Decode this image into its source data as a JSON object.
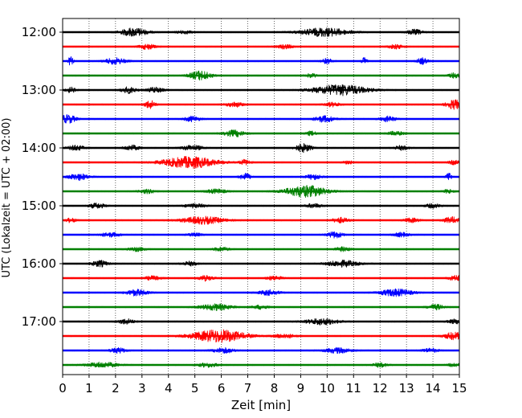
{
  "chart_data": {
    "type": "line",
    "title": "",
    "xlabel": "Zeit  [min]",
    "ylabel": "UTC (Lokalzeit = UTC + 02:00)",
    "xlim": [
      0,
      15
    ],
    "x_ticks": [
      "0",
      "1",
      "2",
      "3",
      "4",
      "5",
      "6",
      "7",
      "8",
      "9",
      "10",
      "11",
      "12",
      "13",
      "14",
      "15"
    ],
    "y_ticks": [
      "12:00",
      "13:00",
      "14:00",
      "15:00",
      "16:00",
      "17:00"
    ],
    "grid": "vertical dotted at each minute",
    "trace_interval_min": 15,
    "colors_cycle": [
      "#000000",
      "#ff0000",
      "#0000ff",
      "#008000"
    ],
    "traces": [
      {
        "start": "12:00",
        "color": "#000000",
        "events": [
          [
            2.7,
            0.5,
            0.8
          ],
          [
            9.9,
            0.9,
            0.8
          ],
          [
            13.3,
            0.3,
            0.5
          ],
          [
            4.6,
            0.3,
            0.3
          ]
        ]
      },
      {
        "start": "12:15",
        "color": "#ff0000",
        "events": [
          [
            3.2,
            0.3,
            0.5
          ],
          [
            8.4,
            0.3,
            0.4
          ],
          [
            12.6,
            0.3,
            0.4
          ]
        ]
      },
      {
        "start": "12:30",
        "color": "#0000ff",
        "events": [
          [
            0.3,
            0.1,
            0.8
          ],
          [
            2.0,
            0.4,
            0.6
          ],
          [
            10.0,
            0.2,
            0.5
          ],
          [
            11.4,
            0.1,
            0.7
          ],
          [
            13.6,
            0.2,
            0.6
          ]
        ]
      },
      {
        "start": "12:45",
        "color": "#008000",
        "events": [
          [
            5.2,
            0.4,
            0.9
          ],
          [
            9.4,
            0.2,
            0.4
          ],
          [
            14.8,
            0.2,
            0.5
          ]
        ]
      },
      {
        "start": "13:00",
        "color": "#000000",
        "events": [
          [
            0.3,
            0.2,
            0.5
          ],
          [
            2.5,
            0.3,
            0.6
          ],
          [
            3.5,
            0.3,
            0.5
          ],
          [
            10.5,
            1.0,
            1.0
          ]
        ]
      },
      {
        "start": "13:15",
        "color": "#ff0000",
        "events": [
          [
            3.3,
            0.2,
            0.8
          ],
          [
            6.5,
            0.3,
            0.5
          ],
          [
            10.2,
            0.3,
            0.4
          ],
          [
            14.8,
            0.3,
            0.9
          ]
        ]
      },
      {
        "start": "13:30",
        "color": "#0000ff",
        "events": [
          [
            0.2,
            0.3,
            0.8
          ],
          [
            4.9,
            0.3,
            0.5
          ],
          [
            9.9,
            0.4,
            0.6
          ],
          [
            12.3,
            0.3,
            0.5
          ]
        ]
      },
      {
        "start": "13:45",
        "color": "#008000",
        "events": [
          [
            6.5,
            0.4,
            0.6
          ],
          [
            9.4,
            0.2,
            0.4
          ],
          [
            12.6,
            0.3,
            0.4
          ]
        ]
      },
      {
        "start": "14:00",
        "color": "#000000",
        "events": [
          [
            0.5,
            0.3,
            0.5
          ],
          [
            2.6,
            0.3,
            0.5
          ],
          [
            4.9,
            0.4,
            0.5
          ],
          [
            9.1,
            0.3,
            0.8
          ],
          [
            12.8,
            0.3,
            0.4
          ]
        ]
      },
      {
        "start": "14:15",
        "color": "#ff0000",
        "events": [
          [
            4.8,
            1.0,
            1.1
          ],
          [
            6.9,
            0.2,
            0.5
          ],
          [
            10.8,
            0.2,
            0.3
          ],
          [
            14.8,
            0.2,
            0.4
          ]
        ]
      },
      {
        "start": "14:30",
        "color": "#0000ff",
        "events": [
          [
            0.6,
            0.4,
            0.6
          ],
          [
            6.9,
            0.2,
            0.7
          ],
          [
            9.5,
            0.3,
            0.5
          ],
          [
            14.6,
            0.1,
            0.9
          ]
        ]
      },
      {
        "start": "14:45",
        "color": "#008000",
        "events": [
          [
            3.2,
            0.3,
            0.4
          ],
          [
            5.8,
            0.4,
            0.4
          ],
          [
            9.2,
            0.8,
            1.1
          ],
          [
            14.6,
            0.2,
            0.4
          ]
        ]
      },
      {
        "start": "15:00",
        "color": "#000000",
        "events": [
          [
            1.3,
            0.3,
            0.5
          ],
          [
            5.0,
            0.4,
            0.4
          ],
          [
            9.5,
            0.3,
            0.4
          ],
          [
            14.0,
            0.3,
            0.4
          ]
        ]
      },
      {
        "start": "15:15",
        "color": "#ff0000",
        "events": [
          [
            0.3,
            0.2,
            0.4
          ],
          [
            5.3,
            0.8,
            0.7
          ],
          [
            10.5,
            0.3,
            0.5
          ],
          [
            13.2,
            0.3,
            0.4
          ],
          [
            14.7,
            0.3,
            0.6
          ]
        ]
      },
      {
        "start": "15:30",
        "color": "#0000ff",
        "events": [
          [
            1.8,
            0.4,
            0.4
          ],
          [
            5.0,
            0.3,
            0.3
          ],
          [
            10.3,
            0.3,
            0.6
          ],
          [
            12.8,
            0.3,
            0.4
          ]
        ]
      },
      {
        "start": "15:45",
        "color": "#008000",
        "events": [
          [
            2.8,
            0.3,
            0.4
          ],
          [
            6.0,
            0.3,
            0.4
          ],
          [
            10.6,
            0.3,
            0.4
          ]
        ]
      },
      {
        "start": "16:00",
        "color": "#000000",
        "events": [
          [
            1.4,
            0.3,
            0.6
          ],
          [
            4.8,
            0.3,
            0.4
          ],
          [
            10.6,
            0.6,
            0.6
          ]
        ]
      },
      {
        "start": "16:15",
        "color": "#ff0000",
        "events": [
          [
            3.4,
            0.3,
            0.4
          ],
          [
            5.4,
            0.3,
            0.5
          ],
          [
            8.0,
            0.3,
            0.4
          ],
          [
            14.9,
            0.3,
            0.5
          ]
        ]
      },
      {
        "start": "16:30",
        "color": "#0000ff",
        "events": [
          [
            2.8,
            0.4,
            0.6
          ],
          [
            7.8,
            0.4,
            0.5
          ],
          [
            12.6,
            0.6,
            0.7
          ]
        ]
      },
      {
        "start": "16:45",
        "color": "#008000",
        "events": [
          [
            5.8,
            0.6,
            0.6
          ],
          [
            7.5,
            0.3,
            0.4
          ],
          [
            14.1,
            0.3,
            0.5
          ]
        ]
      },
      {
        "start": "17:00",
        "color": "#000000",
        "events": [
          [
            2.4,
            0.3,
            0.5
          ],
          [
            9.8,
            0.6,
            0.6
          ],
          [
            14.9,
            0.3,
            0.5
          ]
        ]
      },
      {
        "start": "17:15",
        "color": "#ff0000",
        "events": [
          [
            5.9,
            1.0,
            1.2
          ],
          [
            8.4,
            0.4,
            0.4
          ],
          [
            14.8,
            0.4,
            0.7
          ]
        ]
      },
      {
        "start": "17:30",
        "color": "#0000ff",
        "events": [
          [
            2.1,
            0.3,
            0.5
          ],
          [
            6.1,
            0.4,
            0.5
          ],
          [
            10.4,
            0.5,
            0.5
          ],
          [
            13.9,
            0.3,
            0.4
          ]
        ]
      },
      {
        "start": "17:45",
        "color": "#008000",
        "events": [
          [
            1.5,
            0.6,
            0.5
          ],
          [
            5.5,
            0.4,
            0.4
          ],
          [
            12.0,
            0.3,
            0.4
          ],
          [
            14.8,
            0.2,
            0.4
          ]
        ]
      }
    ]
  }
}
